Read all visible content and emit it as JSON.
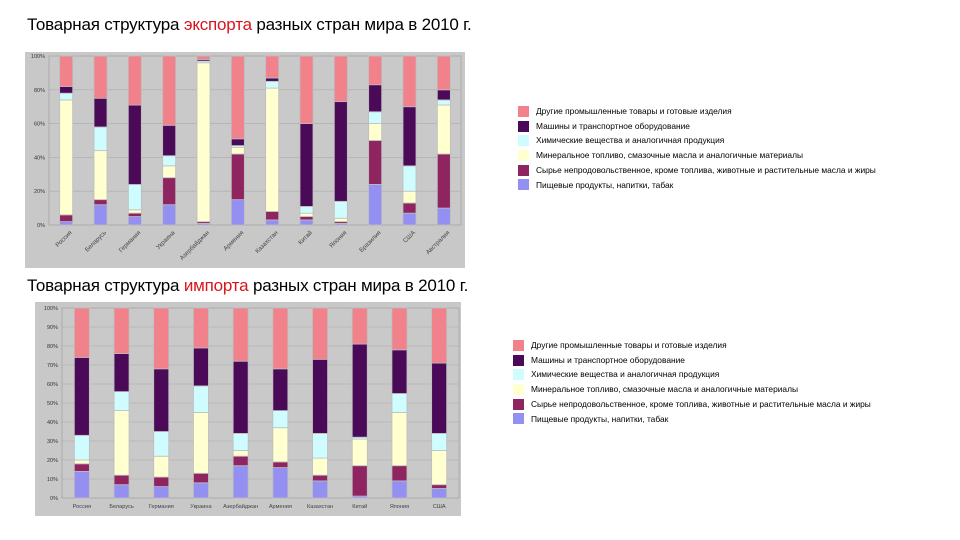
{
  "colors": {
    "other_manufactured": "#f1828c",
    "machinery": "#4b0a57",
    "chemicals": "#cffcff",
    "mineral_fuels": "#ffffd0",
    "raw_materials": "#8e2460",
    "food": "#9490f2"
  },
  "export_section": {
    "title_before": "Товарная структура ",
    "title_highlight": "экспорта",
    "title_after": " разных стран мира в 2010 г."
  },
  "import_section": {
    "title_before": "Товарная структура ",
    "title_highlight": "импорта",
    "title_after": " разных стран мира в 2010 г."
  },
  "legend_export": [
    {
      "key": "other_manufactured",
      "label": "Другие промышленные товары и готовые изделия"
    },
    {
      "key": "machinery",
      "label": "Машины и транспортное оборудование"
    },
    {
      "key": "chemicals",
      "label": "Химические вещества и аналогичная продукция"
    },
    {
      "key": "mineral_fuels",
      "label": "Минеральное топливо, смазочные масла и аналогичные материалы"
    },
    {
      "key": "raw_materials",
      "label": "Сырье непродовольственное, кроме топлива, животные и растительные масла и жиры"
    },
    {
      "key": "food",
      "label": "Пищевые продукты, напитки, табак"
    }
  ],
  "legend_import": [
    {
      "key": "other_manufactured",
      "label": "Другие промышленные товары и готовые изделия"
    },
    {
      "key": "machinery",
      "label": "Машины и транспортное оборудование"
    },
    {
      "key": "chemicals",
      "label": "Химические вещества и аналогичная продукция"
    },
    {
      "key": "mineral_fuels",
      "label": "Минеральное топливо, смазочные масла и аналогичные материалы"
    },
    {
      "key": "raw_materials",
      "label": "Сырье непродовольственное, кроме топлива, животные и растительные масла и жиры"
    },
    {
      "key": "food",
      "label": "Пищевые продукты, напитки, табак"
    }
  ],
  "chart_data": [
    {
      "type": "bar",
      "stacked": true,
      "title": "Товарная структура экспорта разных стран мира в 2010 г.",
      "ylim": [
        0,
        100
      ],
      "yticks": [
        "0%",
        "20%",
        "40%",
        "60%",
        "80%",
        "100%"
      ],
      "categories": [
        "Россия",
        "Беларусь",
        "Германия",
        "Украина",
        "Азербайджан",
        "Армения",
        "Казахстан",
        "Китай",
        "Япония",
        "Бразилия",
        "США",
        "Австралия"
      ],
      "series": [
        {
          "key": "food",
          "name": "Пищевые продукты, напитки, табак",
          "values": [
            2,
            12,
            5,
            12,
            1,
            15,
            3,
            3,
            1,
            24,
            7,
            10
          ]
        },
        {
          "key": "raw_materials",
          "name": "Сырье непродовольственное, кроме топлива, животные и растительные масла и жиры",
          "values": [
            4,
            3,
            2,
            16,
            1,
            27,
            5,
            2,
            1,
            26,
            6,
            32
          ]
        },
        {
          "key": "mineral_fuels",
          "name": "Минеральное топливо, смазочные масла и аналогичные материалы",
          "values": [
            68,
            29,
            2,
            7,
            94,
            4,
            73,
            2,
            2,
            10,
            7,
            29
          ]
        },
        {
          "key": "chemicals",
          "name": "Химические вещества и аналогичная продукция",
          "values": [
            4,
            14,
            15,
            6,
            1,
            1,
            4,
            4,
            10,
            7,
            15,
            3
          ]
        },
        {
          "key": "machinery",
          "name": "Машины и транспортное оборудование",
          "values": [
            4,
            17,
            47,
            18,
            1,
            4,
            2,
            49,
            59,
            16,
            35,
            6
          ]
        },
        {
          "key": "other_manufactured",
          "name": "Другие промышленные товары и готовые изделия",
          "values": [
            18,
            25,
            29,
            41,
            2,
            49,
            13,
            40,
            27,
            17,
            30,
            20
          ]
        }
      ]
    },
    {
      "type": "bar",
      "stacked": true,
      "title": "Товарная структура импорта разных стран мира в 2010 г.",
      "ylim": [
        0,
        100
      ],
      "yticks": [
        "0%",
        "10%",
        "20%",
        "30%",
        "40%",
        "50%",
        "60%",
        "70%",
        "80%",
        "90%",
        "100%"
      ],
      "categories": [
        "Россия",
        "Беларусь",
        "Германия",
        "Украина",
        "Азербайджан",
        "Армения",
        "Казахстан",
        "Китай",
        "Япония",
        "США"
      ],
      "series": [
        {
          "key": "food",
          "name": "Пищевые продукты, напитки, табак",
          "values": [
            14,
            7,
            6,
            8,
            17,
            16,
            9,
            1,
            9,
            5
          ]
        },
        {
          "key": "raw_materials",
          "name": "Сырье непродовольственное, кроме топлива, животные и растительные масла и жиры",
          "values": [
            4,
            5,
            5,
            5,
            5,
            3,
            3,
            16,
            8,
            2
          ]
        },
        {
          "key": "mineral_fuels",
          "name": "Минеральное топливо, смазочные масла и аналогичные материалы",
          "values": [
            2,
            34,
            11,
            32,
            3,
            18,
            9,
            14,
            28,
            18
          ]
        },
        {
          "key": "chemicals",
          "name": "Химические вещества и аналогичная продукция",
          "values": [
            13,
            10,
            13,
            14,
            9,
            9,
            13,
            1,
            10,
            9
          ]
        },
        {
          "key": "machinery",
          "name": "Машины и транспортное оборудование",
          "values": [
            41,
            20,
            33,
            20,
            38,
            22,
            39,
            49,
            23,
            37
          ]
        },
        {
          "key": "other_manufactured",
          "name": "Другие промышленные товары и готовые изделия",
          "values": [
            26,
            24,
            32,
            21,
            28,
            32,
            27,
            19,
            22,
            29
          ]
        }
      ]
    }
  ]
}
